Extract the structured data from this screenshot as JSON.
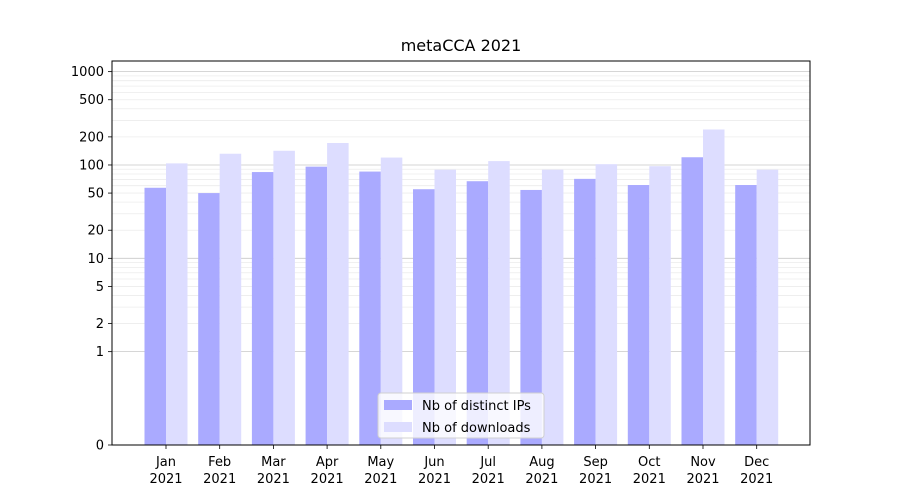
{
  "chart_data": {
    "type": "bar",
    "title": "metaCCA 2021",
    "xlabel": "",
    "ylabel": "",
    "y_scale": "symlog",
    "ylim": [
      0,
      1300
    ],
    "y_ticks": [
      0,
      1,
      2,
      5,
      10,
      20,
      50,
      100,
      200,
      500,
      1000
    ],
    "y_tick_labels": [
      "0",
      "1",
      "2",
      "5",
      "10",
      "20",
      "50",
      "100",
      "200",
      "500",
      "1000"
    ],
    "grid": true,
    "legend_position": "bottom-center",
    "categories": [
      [
        "Jan",
        "2021"
      ],
      [
        "Feb",
        "2021"
      ],
      [
        "Mar",
        "2021"
      ],
      [
        "Apr",
        "2021"
      ],
      [
        "May",
        "2021"
      ],
      [
        "Jun",
        "2021"
      ],
      [
        "Jul",
        "2021"
      ],
      [
        "Aug",
        "2021"
      ],
      [
        "Sep",
        "2021"
      ],
      [
        "Oct",
        "2021"
      ],
      [
        "Nov",
        "2021"
      ],
      [
        "Dec",
        "2021"
      ]
    ],
    "series": [
      {
        "name": "Nb of distinct IPs",
        "color": "#aaaaff",
        "values": [
          57,
          50,
          84,
          96,
          85,
          55,
          67,
          54,
          71,
          61,
          121,
          61
        ]
      },
      {
        "name": "Nb of downloads",
        "color": "#ddddff",
        "values": [
          104,
          132,
          142,
          172,
          120,
          89,
          110,
          89,
          102,
          97,
          240,
          89
        ]
      }
    ]
  }
}
